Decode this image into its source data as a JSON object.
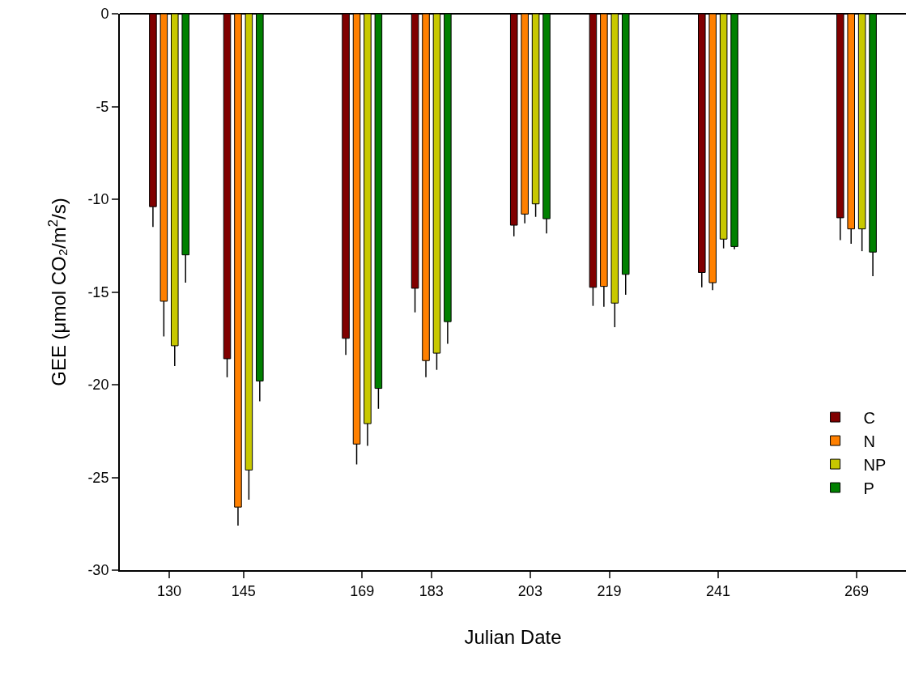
{
  "chart_data": {
    "type": "bar",
    "xlabel": "Julian Date",
    "ylabel": "GEE (μmol CO₂/m$^{2}$/s)",
    "x": [
      130,
      145,
      169,
      183,
      203,
      219,
      241,
      269
    ],
    "xlim": [
      120,
      279
    ],
    "xticks": [
      130,
      145,
      169,
      183,
      203,
      219,
      241,
      269
    ],
    "ylim": [
      -30,
      0
    ],
    "yticks": [
      -30,
      -25,
      -20,
      -15,
      -10,
      -5,
      0
    ],
    "grid": false,
    "legend": "bottom right",
    "series": [
      {
        "name": "C",
        "color": "#800000",
        "values": [
          -10.4,
          -18.6,
          -17.5,
          -14.8,
          -11.4,
          -14.75,
          -13.95,
          -11.0
        ],
        "errors": [
          [
            -11.5,
            -10.4
          ],
          [
            -19.6,
            -18.6
          ],
          [
            -18.4,
            -17.5
          ],
          [
            -16.1,
            -14.8
          ],
          [
            -12.0,
            -11.4
          ],
          [
            -15.75,
            -14.75
          ],
          [
            -14.75,
            -13.95
          ],
          [
            -12.2,
            -11.0
          ]
        ]
      },
      {
        "name": "N",
        "color": "#ff8000",
        "values": [
          -15.5,
          -26.6,
          -23.2,
          -18.7,
          -10.8,
          -14.7,
          -14.5,
          -11.6
        ],
        "errors": [
          [
            -17.4,
            -15.5
          ],
          [
            -27.6,
            -26.6
          ],
          [
            -24.3,
            -23.2
          ],
          [
            -19.6,
            -18.7
          ],
          [
            -11.3,
            -10.8
          ],
          [
            -15.8,
            -14.7
          ],
          [
            -14.9,
            -14.5
          ],
          [
            -12.4,
            -11.6
          ]
        ]
      },
      {
        "name": "NP",
        "color": "#c8c800",
        "values": [
          -17.9,
          -24.6,
          -22.1,
          -18.3,
          -10.25,
          -15.6,
          -12.15,
          -11.6
        ],
        "errors": [
          [
            -19.0,
            -17.9
          ],
          [
            -26.2,
            -24.6
          ],
          [
            -23.3,
            -22.1
          ],
          [
            -19.2,
            -18.3
          ],
          [
            -10.95,
            -10.25
          ],
          [
            -16.9,
            -15.6
          ],
          [
            -12.65,
            -12.15
          ],
          [
            -12.8,
            -11.6
          ]
        ]
      },
      {
        "name": "P",
        "color": "#008000",
        "values": [
          -13.0,
          -19.8,
          -20.2,
          -16.6,
          -11.05,
          -14.05,
          -12.55,
          -12.85
        ],
        "errors": [
          [
            -14.5,
            -13.0
          ],
          [
            -20.9,
            -19.8
          ],
          [
            -21.3,
            -20.2
          ],
          [
            -17.8,
            -16.6
          ],
          [
            -11.85,
            -11.05
          ],
          [
            -15.15,
            -14.05
          ],
          [
            -12.7,
            -12.55
          ],
          [
            -14.15,
            -12.85
          ]
        ]
      }
    ]
  }
}
